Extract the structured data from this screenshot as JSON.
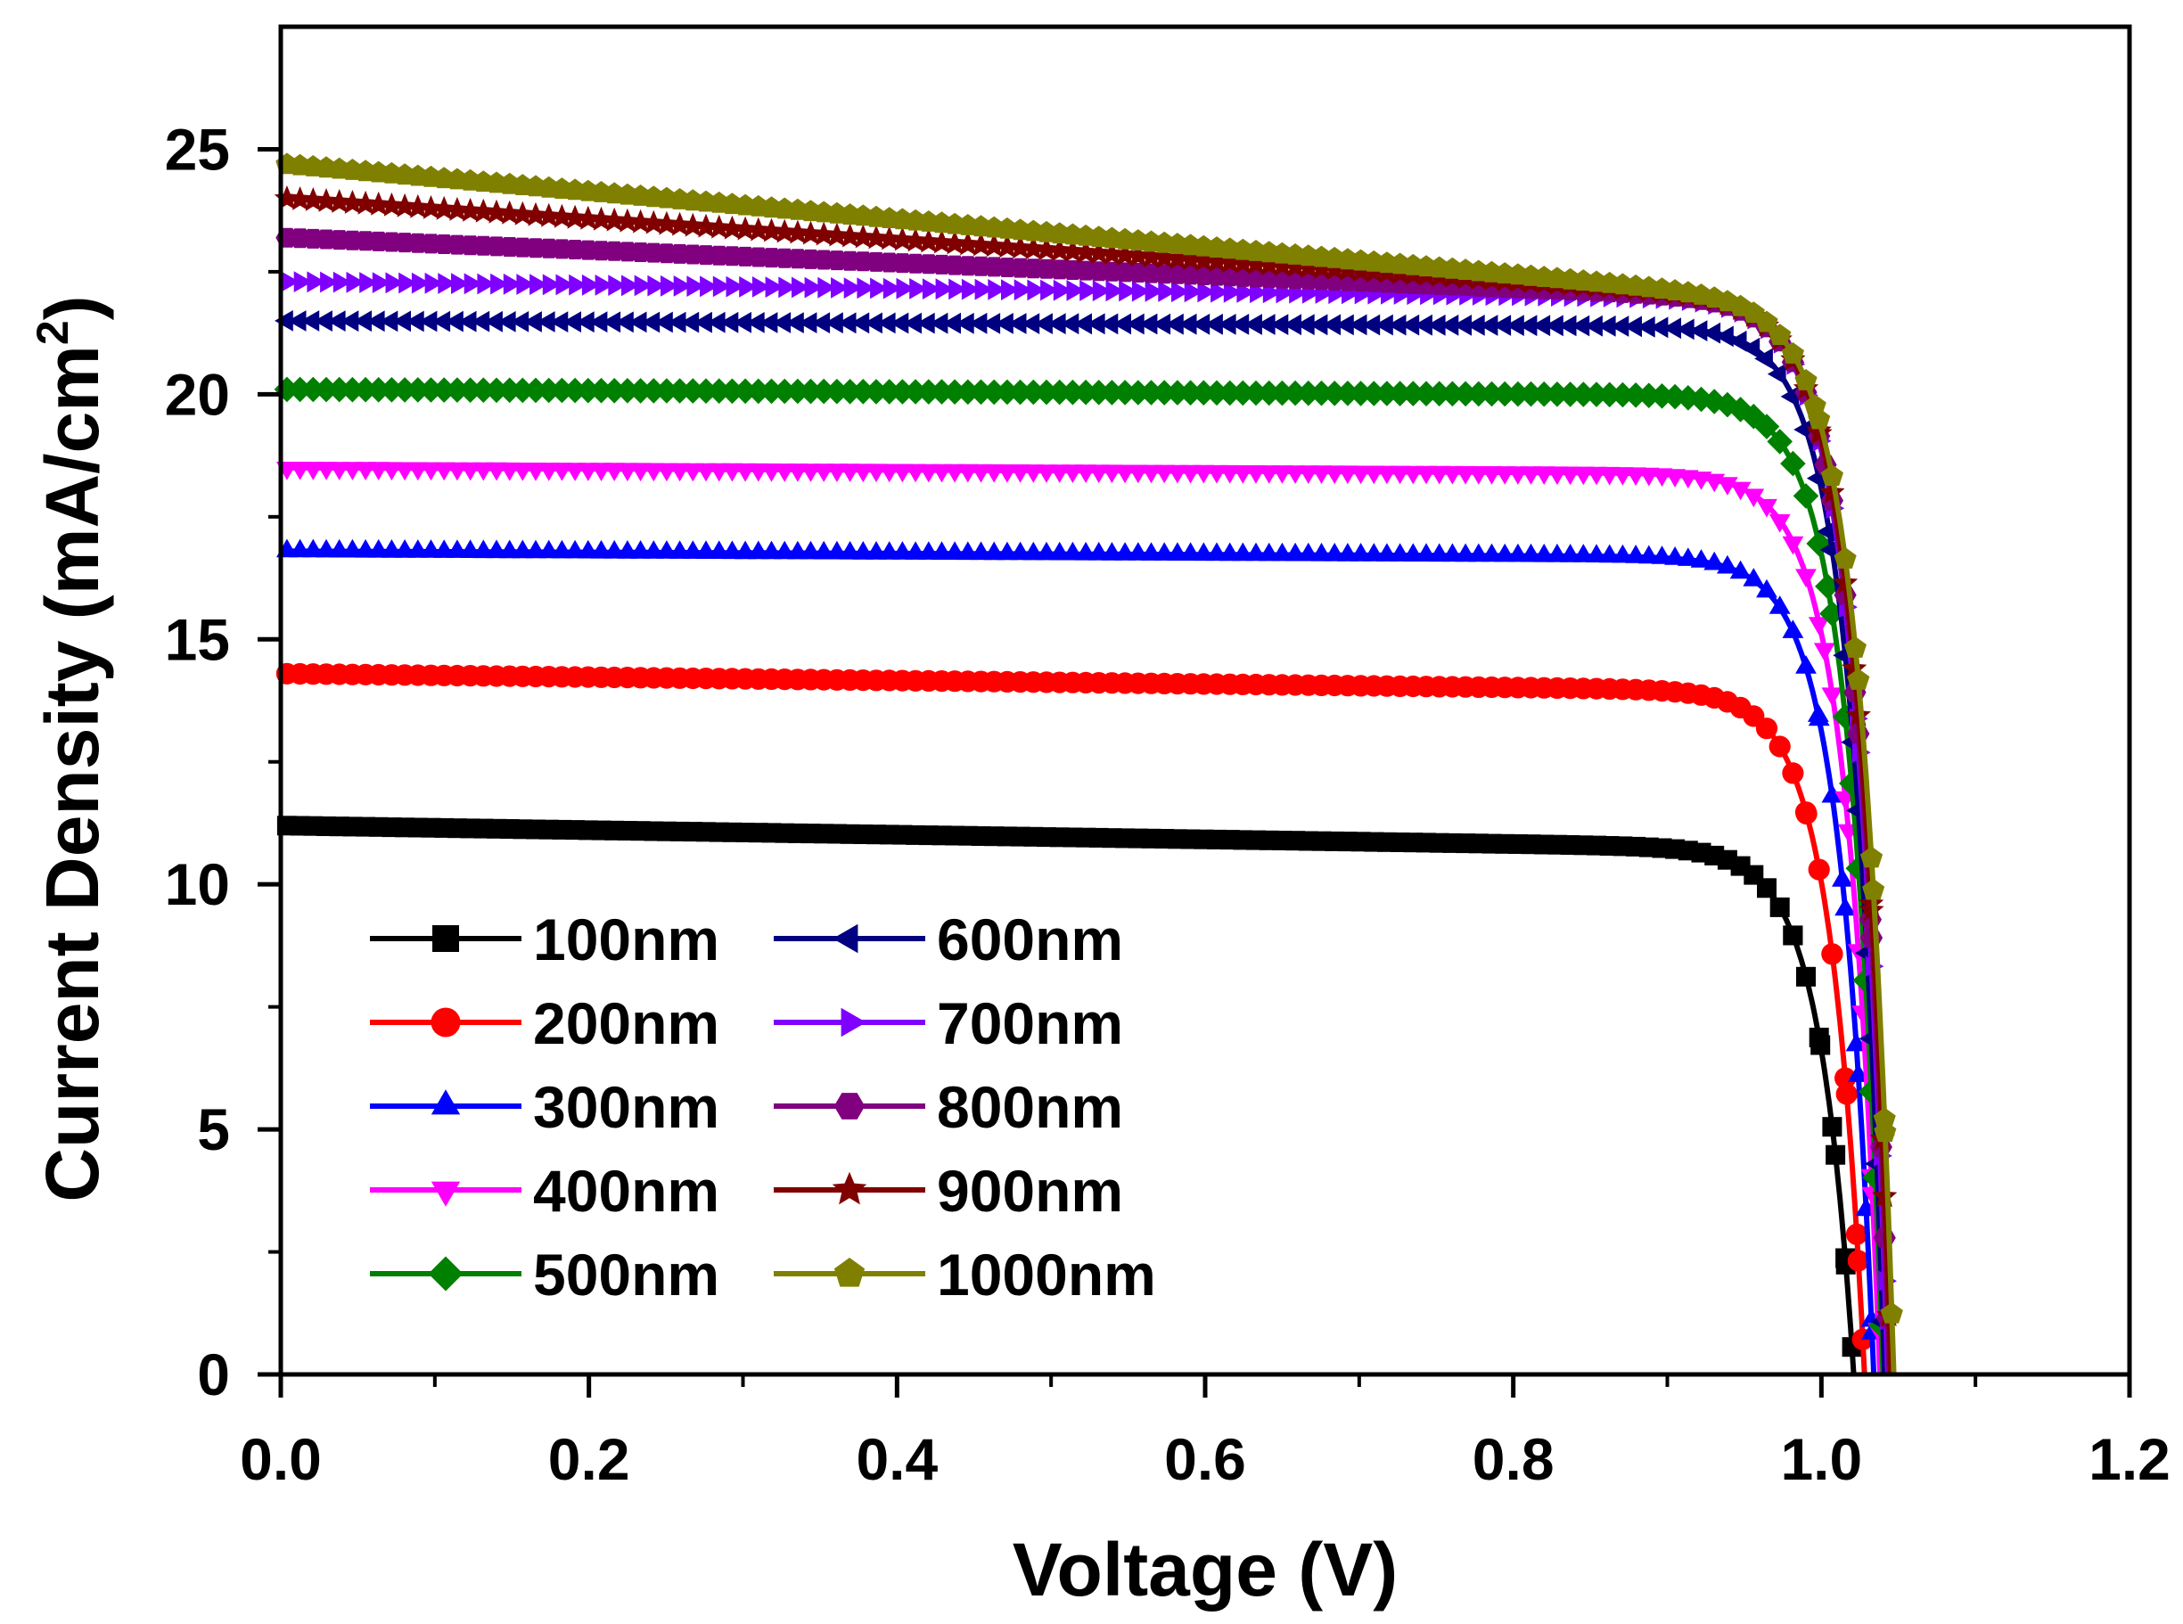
{
  "chart_data": {
    "type": "line",
    "title": "",
    "xlabel": "Voltage (V)",
    "ylabel": "Current Density (mA/cm",
    "ylabel_sup": "2",
    "ylabel_close": ")",
    "xlim": [
      0.0,
      1.2
    ],
    "ylim": [
      0,
      27.5
    ],
    "xticks": [
      "0.0",
      "0.2",
      "0.4",
      "0.6",
      "0.8",
      "1.0",
      "1.2"
    ],
    "yticks": [
      "0",
      "5",
      "10",
      "15",
      "20",
      "25"
    ],
    "legend_position": "bottom-left",
    "series": [
      {
        "name": "100nm",
        "color": "#000000",
        "marker": "square",
        "jsc": 11.2,
        "jend": 10.8,
        "voc": 1.021
      },
      {
        "name": "200nm",
        "color": "#ff0000",
        "marker": "circle",
        "jsc": 14.3,
        "jend": 14.0,
        "voc": 1.028
      },
      {
        "name": "300nm",
        "color": "#0000ff",
        "marker": "triangle-up",
        "jsc": 16.8,
        "jend": 16.7,
        "voc": 1.034
      },
      {
        "name": "400nm",
        "color": "#ff00ff",
        "marker": "triangle-down",
        "jsc": 18.5,
        "jend": 18.4,
        "voc": 1.038
      },
      {
        "name": "500nm",
        "color": "#008000",
        "marker": "diamond",
        "jsc": 20.1,
        "jend": 20.0,
        "voc": 1.04
      },
      {
        "name": "600nm",
        "color": "#000080",
        "marker": "triangle-left",
        "jsc": 21.5,
        "jend": 21.4,
        "voc": 1.041
      },
      {
        "name": "700nm",
        "color": "#8000ff",
        "marker": "triangle-right",
        "jsc": 22.3,
        "jend": 22.0,
        "voc": 1.043
      },
      {
        "name": "800nm",
        "color": "#800080",
        "marker": "hexagon",
        "jsc": 23.2,
        "jend": 22.1,
        "voc": 1.044
      },
      {
        "name": "900nm",
        "color": "#800000",
        "marker": "star",
        "jsc": 24.0,
        "jend": 22.2,
        "voc": 1.045
      },
      {
        "name": "1000nm",
        "color": "#808000",
        "marker": "pentagon",
        "jsc": 24.7,
        "jend": 22.3,
        "voc": 1.047
      }
    ]
  }
}
